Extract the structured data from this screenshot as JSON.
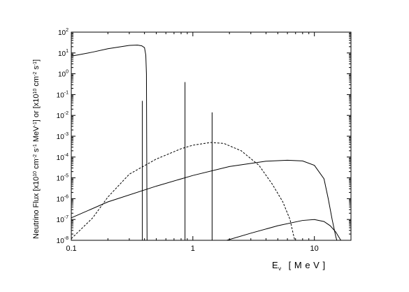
{
  "chart_data": {
    "type": "line",
    "xlabel_main": "E",
    "xlabel_sub": "ν",
    "xlabel_unit": "[ M e V ]",
    "ylabel_parts": [
      {
        "t": "Neutrino Flux [x10"
      },
      {
        "t": "10",
        "s": "sup"
      },
      {
        "t": " cm"
      },
      {
        "t": "-2",
        "s": "sup"
      },
      {
        "t": " s"
      },
      {
        "t": "-1",
        "s": "sup"
      },
      {
        "t": " MeV"
      },
      {
        "t": "-1",
        "s": "sup"
      },
      {
        "t": "] or [x10"
      },
      {
        "t": "10",
        "s": "sup"
      },
      {
        "t": " cm"
      },
      {
        "t": "-2",
        "s": "sup"
      },
      {
        "t": " s"
      },
      {
        "t": "-1",
        "s": "sup"
      },
      {
        "t": "]"
      }
    ],
    "x_scale": "log",
    "y_scale": "log",
    "xlim": [
      0.1,
      20
    ],
    "ylim": [
      1e-08,
      100
    ],
    "x_ticks": [
      {
        "value": 0.1,
        "label": "0.1"
      },
      {
        "value": 1,
        "label": "1"
      },
      {
        "value": 10,
        "label": "10"
      }
    ],
    "y_ticks": [
      {
        "exp": 2,
        "label": "10",
        "sup": "2"
      },
      {
        "exp": 1,
        "label": "10",
        "sup": "1"
      },
      {
        "exp": 0,
        "label": "10",
        "sup": "0"
      },
      {
        "exp": -1,
        "label": "10",
        "sup": "-1"
      },
      {
        "exp": -2,
        "label": "10",
        "sup": "-2"
      },
      {
        "exp": -3,
        "label": "10",
        "sup": "-3"
      },
      {
        "exp": -4,
        "label": "10",
        "sup": "-4"
      },
      {
        "exp": -5,
        "label": "10",
        "sup": "-5"
      },
      {
        "exp": -6,
        "label": "10",
        "sup": "-6"
      },
      {
        "exp": -7,
        "label": "10",
        "sup": "-7"
      },
      {
        "exp": -8,
        "label": "10",
        "sup": "-8"
      }
    ],
    "grid": false,
    "legend": "none",
    "series": [
      {
        "style": "solid",
        "points": [
          [
            0.1,
            7
          ],
          [
            0.15,
            11
          ],
          [
            0.2,
            16
          ],
          [
            0.3,
            23
          ],
          [
            0.35,
            24
          ],
          [
            0.38,
            22
          ],
          [
            0.4,
            18
          ],
          [
            0.41,
            8
          ],
          [
            0.415,
            1
          ],
          [
            0.42,
            1e-08
          ]
        ]
      },
      {
        "style": "dashed",
        "points": [
          [
            0.1,
            1.2e-08
          ],
          [
            0.15,
            1.2e-07
          ],
          [
            0.2,
            1.2e-06
          ],
          [
            0.3,
            1.5e-05
          ],
          [
            0.5,
            8e-05
          ],
          [
            0.8,
            0.00025
          ],
          [
            1.0,
            0.00037
          ],
          [
            1.4,
            0.0005
          ],
          [
            1.8,
            0.00045
          ],
          [
            2.5,
            0.0002
          ],
          [
            3.5,
            4e-05
          ],
          [
            4.5,
            5e-06
          ],
          [
            5.5,
            7e-07
          ],
          [
            6.3,
            1e-07
          ],
          [
            6.7,
            2e-08
          ],
          [
            6.9,
            1e-08
          ]
        ]
      },
      {
        "style": "solid",
        "points": [
          [
            0.1,
            1.2e-07
          ],
          [
            0.2,
            7e-07
          ],
          [
            0.5,
            4e-06
          ],
          [
            1,
            1.3e-05
          ],
          [
            2,
            3.5e-05
          ],
          [
            4,
            6.3e-05
          ],
          [
            6,
            7e-05
          ],
          [
            8,
            6.5e-05
          ],
          [
            10,
            4e-05
          ],
          [
            12,
            9e-06
          ],
          [
            13,
            1e-06
          ],
          [
            14,
            1e-07
          ],
          [
            15,
            1.5e-08
          ],
          [
            15.3,
            1e-08
          ]
        ]
      },
      {
        "style": "solid",
        "points": [
          [
            1.9,
            1e-08
          ],
          [
            3,
            2.2e-08
          ],
          [
            5,
            5e-08
          ],
          [
            8,
            9e-08
          ],
          [
            10,
            1e-07
          ],
          [
            12,
            8e-08
          ],
          [
            13.5,
            5e-08
          ],
          [
            15,
            2.5e-08
          ],
          [
            16.5,
            1e-08
          ]
        ]
      }
    ],
    "lines": [
      {
        "x": 0.384,
        "y": 0.05
      },
      {
        "x": 0.862,
        "y": 0.4
      },
      {
        "x": 1.44,
        "y": 0.014
      }
    ]
  }
}
